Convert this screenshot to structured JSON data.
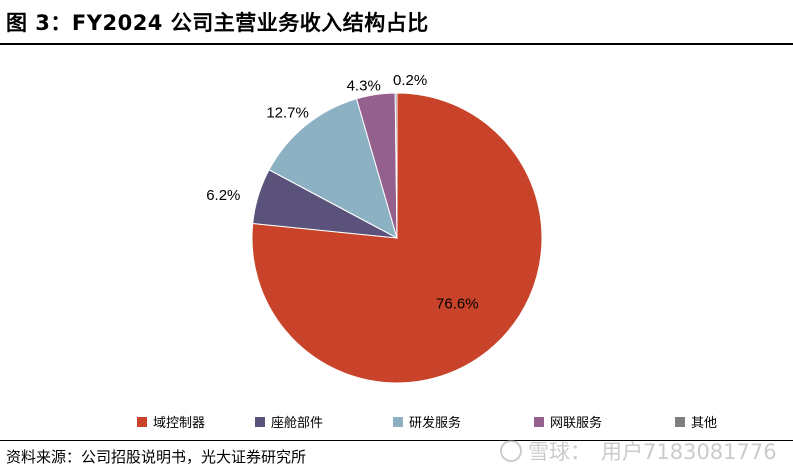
{
  "header": {
    "title": "图 3：FY2024 公司主营业务收入结构占比"
  },
  "footer": {
    "source": "资料来源：公司招股说明书，光大证券研究所",
    "watermark_brand": "雪球：",
    "watermark_user": "用户7183081776",
    "watermark_icon": "snowball-logo-icon"
  },
  "chart_data": {
    "type": "pie",
    "title": "",
    "categories": [
      "域控制器",
      "座舱部件",
      "研发服务",
      "网联服务",
      "其他"
    ],
    "values": [
      76.6,
      6.2,
      12.7,
      4.3,
      0.2
    ],
    "labels": [
      "76.6%",
      "6.2%",
      "12.7%",
      "4.3%",
      "0.2%"
    ],
    "colors": [
      "#C8432A",
      "#5A527A",
      "#8BB1C3",
      "#94618E",
      "#7F7F7F"
    ],
    "start_angle": "12 o'clock",
    "direction": "clockwise",
    "legend_position": "bottom"
  }
}
